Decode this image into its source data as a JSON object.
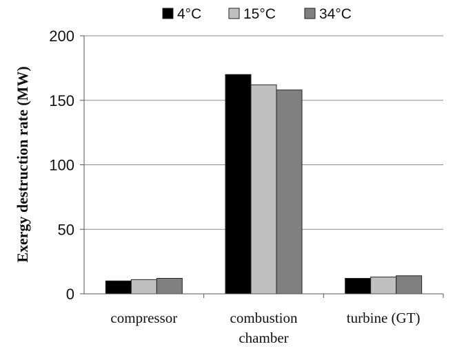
{
  "chart_data": {
    "type": "bar",
    "title": "",
    "xlabel": "",
    "ylabel": "Exergy destruction rate (MW)",
    "categories": [
      [
        "compressor"
      ],
      [
        "combustion",
        "chamber"
      ],
      [
        "turbine (GT)"
      ]
    ],
    "series": [
      {
        "name": "4°C",
        "color": "#000000",
        "values": [
          10,
          170,
          12
        ]
      },
      {
        "name": "15°C",
        "color": "#c0c0c0",
        "values": [
          11,
          162,
          13
        ]
      },
      {
        "name": "34°C",
        "color": "#808080",
        "values": [
          12,
          158,
          14
        ]
      }
    ],
    "ylim": [
      0,
      200
    ],
    "yticks": [
      "0",
      "50",
      "100",
      "150",
      "200"
    ],
    "grid": true,
    "legend": "top"
  }
}
